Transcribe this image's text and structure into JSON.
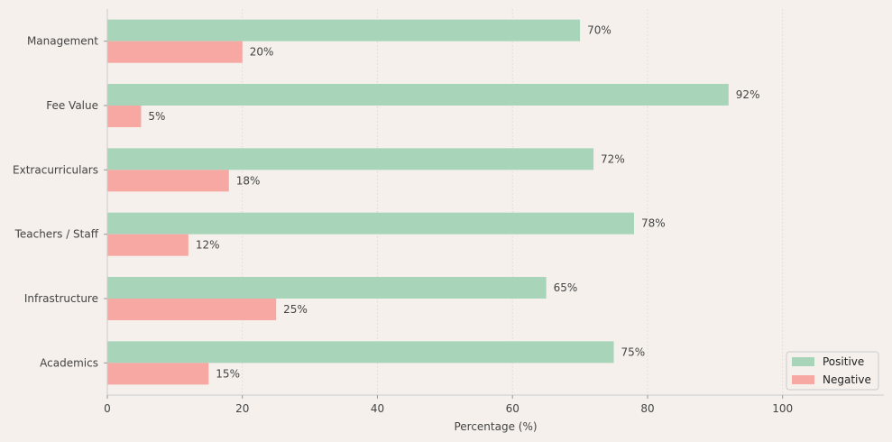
{
  "chart_data": {
    "type": "bar",
    "orientation": "horizontal",
    "title": "",
    "xlabel": "Percentage (%)",
    "ylabel": "",
    "xlim": [
      0,
      115
    ],
    "xticks": [
      0,
      20,
      40,
      60,
      80,
      100
    ],
    "grid": "vertical dotted",
    "categories": [
      "Management",
      "Fee Value",
      "Extracurriculars",
      "Teachers / Staff",
      "Infrastructure",
      "Academics"
    ],
    "series": [
      {
        "name": "Positive",
        "color": "#a8d5b9",
        "values": [
          70,
          92,
          72,
          78,
          65,
          75
        ]
      },
      {
        "name": "Negative",
        "color": "#f7a8a3",
        "values": [
          20,
          5,
          18,
          12,
          25,
          15
        ]
      }
    ],
    "value_suffix": "%",
    "legend_position": "bottom-right"
  }
}
